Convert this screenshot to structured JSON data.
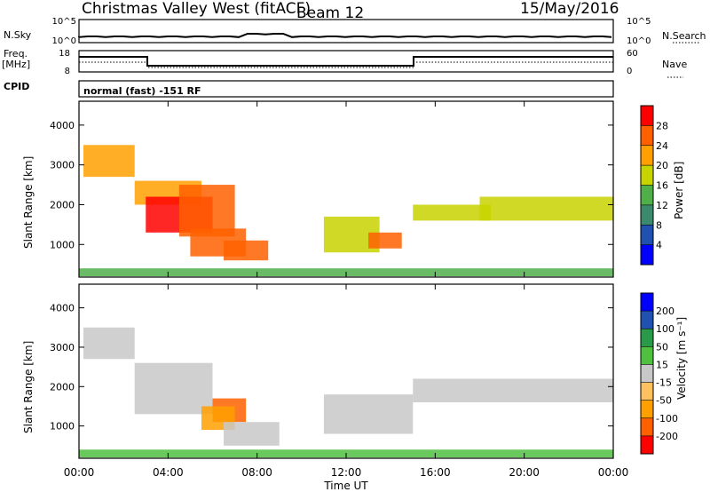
{
  "header": {
    "station": "Christmas Valley West (fitACF)",
    "beam": "Beam 12",
    "date": "15/May/2016"
  },
  "top_panels": {
    "nsky_label": "N.Sky",
    "nsky_ticks": [
      "10^5",
      "10^0"
    ],
    "nsearch_label": "N.Search",
    "nsearch_ticks": [
      "10^5",
      "10^0"
    ],
    "freq_label_1": "Freq.",
    "freq_label_2": "[MHz]",
    "freq_ticks": [
      "18",
      "8"
    ],
    "nave_label": "Nave",
    "nave_ticks": [
      "60",
      "0"
    ],
    "cpid_label": "CPID",
    "cpid_text": "normal (fast) -151 RF"
  },
  "chart_data": [
    {
      "type": "heatmap",
      "name": "power",
      "ylabel": "Slant Range [km]",
      "yticks": [
        "4000",
        "3000",
        "2000",
        "1000"
      ],
      "ylim": [
        180,
        4600
      ],
      "colorbar_label": "Power [dB]",
      "colorbar_ticks": [
        "28",
        "24",
        "20",
        "16",
        "12",
        "8",
        "4"
      ],
      "colors": [
        "#0000ff",
        "#2050b0",
        "#3c8a6e",
        "#4fb04a",
        "#c8d400",
        "#ffa000",
        "#ff6000",
        "#ff0000"
      ],
      "features": [
        {
          "t": [
            0.2,
            2.5
          ],
          "r": [
            2700,
            3500
          ],
          "level": 5
        },
        {
          "t": [
            2.5,
            5.5
          ],
          "r": [
            2000,
            2600
          ],
          "level": 5
        },
        {
          "t": [
            3.0,
            6.0
          ],
          "r": [
            1300,
            2200
          ],
          "level": 7
        },
        {
          "t": [
            4.5,
            7.0
          ],
          "r": [
            1200,
            2500
          ],
          "level": 6
        },
        {
          "t": [
            5.0,
            7.5
          ],
          "r": [
            700,
            1400
          ],
          "level": 6
        },
        {
          "t": [
            6.5,
            8.5
          ],
          "r": [
            600,
            1100
          ],
          "level": 6
        },
        {
          "t": [
            11.0,
            13.5
          ],
          "r": [
            800,
            1700
          ],
          "level": 4
        },
        {
          "t": [
            13.0,
            14.5
          ],
          "r": [
            900,
            1300
          ],
          "level": 6
        },
        {
          "t": [
            15.0,
            18.5
          ],
          "r": [
            1600,
            2000
          ],
          "level": 4
        },
        {
          "t": [
            18.0,
            24.0
          ],
          "r": [
            1600,
            2200
          ],
          "level": 4
        },
        {
          "t": [
            0.0,
            24.0
          ],
          "r": [
            200,
            400
          ],
          "level": 3
        }
      ]
    },
    {
      "type": "heatmap",
      "name": "velocity",
      "ylabel": "Slant Range [km]",
      "yticks": [
        "4000",
        "3000",
        "2000",
        "1000"
      ],
      "ylim": [
        180,
        4600
      ],
      "xlabel": "Time UT",
      "xticks": [
        "00:00",
        "04:00",
        "08:00",
        "12:00",
        "16:00",
        "20:00",
        "00:00"
      ],
      "xlim": [
        0,
        24
      ],
      "colorbar_label": "Velocity [m s⁻¹]",
      "colorbar_ticks": [
        "200",
        "100",
        "50",
        "15",
        "-15",
        "-50",
        "-100",
        "-200"
      ],
      "colors": [
        "#ff0000",
        "#ff6000",
        "#ffa000",
        "#ffc060",
        "#c8c8c8",
        "#4fc040",
        "#2a9a4a",
        "#2050b0",
        "#0000ff"
      ],
      "features": [
        {
          "t": [
            0.2,
            2.5
          ],
          "r": [
            2700,
            3500
          ],
          "level": 4
        },
        {
          "t": [
            2.5,
            6.0
          ],
          "r": [
            1300,
            2600
          ],
          "level": 4
        },
        {
          "t": [
            6.0,
            7.5
          ],
          "r": [
            1100,
            1700
          ],
          "level": 1
        },
        {
          "t": [
            5.5,
            7.0
          ],
          "r": [
            900,
            1500
          ],
          "level": 2
        },
        {
          "t": [
            6.5,
            9.0
          ],
          "r": [
            500,
            1100
          ],
          "level": 4
        },
        {
          "t": [
            11.0,
            15.0
          ],
          "r": [
            800,
            1800
          ],
          "level": 4
        },
        {
          "t": [
            15.0,
            24.0
          ],
          "r": [
            1600,
            2200
          ],
          "level": 4
        },
        {
          "t": [
            0.0,
            24.0
          ],
          "r": [
            200,
            400
          ],
          "level": 5
        }
      ]
    }
  ]
}
